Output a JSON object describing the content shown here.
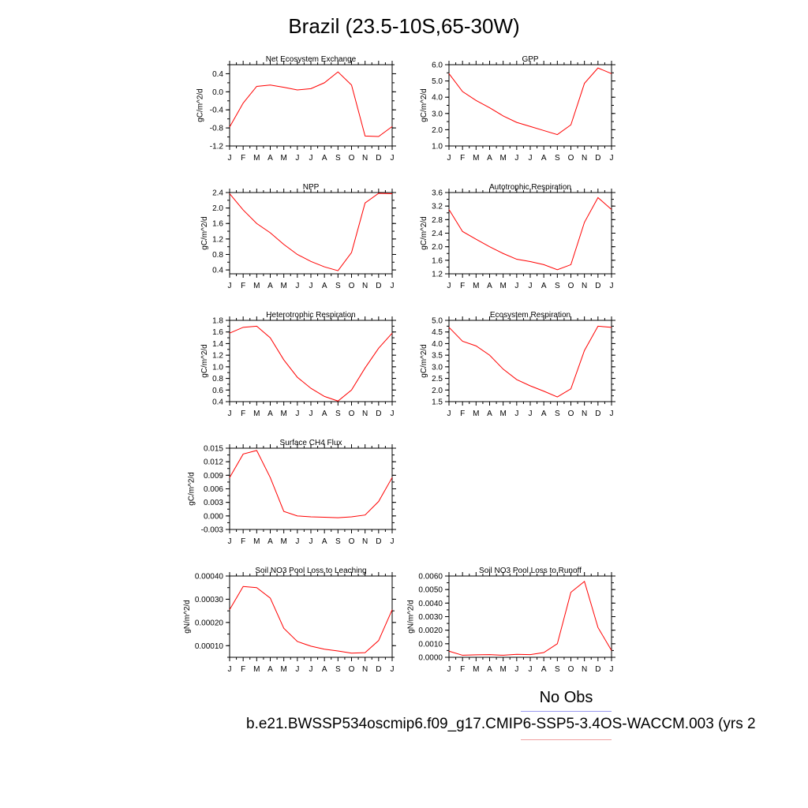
{
  "title": "Brazil (23.5-10S,65-30W)",
  "legend": {
    "label": "No Obs",
    "obs_color": "#9a9af0",
    "model_color": "#f0a0a0"
  },
  "case_label": "b.e21.BWSSP534oscmip6.f09_g17.CMIP6-SSP5-3.4OS-WACCM.003 (yrs 2",
  "line_color": "#ff0000",
  "month_labels": [
    "J",
    "F",
    "M",
    "A",
    "M",
    "J",
    "J",
    "A",
    "S",
    "O",
    "N",
    "D",
    "J"
  ],
  "chart_data": [
    {
      "type": "line",
      "title": "Net Ecosystem Exchange",
      "ylabel": "gC/m^2/d",
      "ylim": [
        -1.2,
        0.6
      ],
      "yticks": [
        -1.2,
        -0.8,
        -0.4,
        0.0,
        0.4
      ],
      "ytick_labels": [
        "-1.2",
        "-0.8",
        "-0.4",
        "0.0",
        "0.4"
      ],
      "values": [
        -0.78,
        -0.25,
        0.12,
        0.15,
        0.1,
        0.04,
        0.07,
        0.2,
        0.44,
        0.15,
        -0.98,
        -0.99,
        -0.77
      ]
    },
    {
      "type": "line",
      "title": "GPP",
      "ylabel": "gC/m^2/d",
      "ylim": [
        1.0,
        6.0
      ],
      "yticks": [
        1.0,
        2.0,
        3.0,
        4.0,
        5.0,
        6.0
      ],
      "ytick_labels": [
        "1.0",
        "2.0",
        "3.0",
        "4.0",
        "5.0",
        "6.0"
      ],
      "values": [
        5.45,
        4.35,
        3.8,
        3.35,
        2.85,
        2.45,
        2.2,
        1.95,
        1.7,
        2.3,
        4.85,
        5.8,
        5.45
      ]
    },
    {
      "type": "line",
      "title": "NPP",
      "ylabel": "gC/m^2/d",
      "ylim": [
        0.3,
        2.4
      ],
      "yticks": [
        0.4,
        0.8,
        1.2,
        1.6,
        2.0,
        2.4
      ],
      "ytick_labels": [
        "0.4",
        "0.8",
        "1.2",
        "1.6",
        "2.0",
        "2.4"
      ],
      "values": [
        2.37,
        1.95,
        1.6,
        1.36,
        1.06,
        0.8,
        0.62,
        0.48,
        0.38,
        0.85,
        2.13,
        2.38,
        2.37
      ]
    },
    {
      "type": "line",
      "title": "Autotrophic Respiration",
      "ylabel": "gC/m^2/d",
      "ylim": [
        1.2,
        3.6
      ],
      "yticks": [
        1.2,
        1.6,
        2.0,
        2.4,
        2.8,
        3.2,
        3.6
      ],
      "ytick_labels": [
        "1.2",
        "1.6",
        "2.0",
        "2.4",
        "2.8",
        "3.2",
        "3.6"
      ],
      "values": [
        3.1,
        2.45,
        2.22,
        2.0,
        1.8,
        1.63,
        1.56,
        1.47,
        1.32,
        1.47,
        2.72,
        3.45,
        3.1
      ]
    },
    {
      "type": "line",
      "title": "Heterotrophic Respiration",
      "ylabel": "gC/m^2/d",
      "ylim": [
        0.4,
        1.8
      ],
      "yticks": [
        0.4,
        0.6,
        0.8,
        1.0,
        1.2,
        1.4,
        1.6,
        1.8
      ],
      "ytick_labels": [
        "0.4",
        "0.6",
        "0.8",
        "1.0",
        "1.2",
        "1.4",
        "1.6",
        "1.8"
      ],
      "values": [
        1.58,
        1.68,
        1.7,
        1.5,
        1.12,
        0.82,
        0.63,
        0.49,
        0.41,
        0.6,
        0.98,
        1.32,
        1.58
      ]
    },
    {
      "type": "line",
      "title": "Ecosystem Respiration",
      "ylabel": "gC/m^2/d",
      "ylim": [
        1.5,
        5.0
      ],
      "yticks": [
        1.5,
        2.0,
        2.5,
        3.0,
        3.5,
        4.0,
        4.5,
        5.0
      ],
      "ytick_labels": [
        "1.5",
        "2.0",
        "2.5",
        "3.0",
        "3.5",
        "4.0",
        "4.5",
        "5.0"
      ],
      "values": [
        4.7,
        4.1,
        3.9,
        3.5,
        2.9,
        2.45,
        2.18,
        1.95,
        1.7,
        2.05,
        3.7,
        4.75,
        4.7
      ]
    },
    {
      "type": "line",
      "title": "Surface CH4 Flux",
      "ylabel": "gC/m^2/d",
      "ylim": [
        -0.003,
        0.015
      ],
      "yticks": [
        -0.003,
        0.0,
        0.003,
        0.006,
        0.009,
        0.012,
        0.015
      ],
      "ytick_labels": [
        "-0.003",
        "0.000",
        "0.003",
        "0.006",
        "0.009",
        "0.012",
        "0.015"
      ],
      "values": [
        0.0085,
        0.0137,
        0.0145,
        0.0085,
        0.001,
        0.0,
        -0.0002,
        -0.0003,
        -0.0004,
        -0.0002,
        0.0002,
        0.0032,
        0.0085
      ]
    },
    null,
    {
      "type": "line",
      "title": "Soil NO3 Pool Loss to Leaching",
      "ylabel": "gN/m^2/d",
      "ylim": [
        5e-05,
        0.0004
      ],
      "yticks": [
        0.0001,
        0.0002,
        0.0003,
        0.0004
      ],
      "ytick_labels": [
        "0.00010",
        "0.00020",
        "0.00030",
        "0.00040"
      ],
      "values": [
        0.000255,
        0.000355,
        0.00035,
        0.000305,
        0.000175,
        0.000118,
        9.8e-05,
        8.5e-05,
        7.7e-05,
        6.8e-05,
        7e-05,
        0.000122,
        0.000255
      ]
    },
    {
      "type": "line",
      "title": "Soil NO3 Pool Loss to Runoff",
      "ylabel": "gN/m^2/d",
      "ylim": [
        0.0,
        0.006
      ],
      "yticks": [
        0.0,
        0.001,
        0.002,
        0.003,
        0.004,
        0.005,
        0.006
      ],
      "ytick_labels": [
        "0.0000",
        "0.0010",
        "0.0020",
        "0.0030",
        "0.0040",
        "0.0050",
        "0.0060"
      ],
      "values": [
        0.00045,
        0.00015,
        0.00018,
        0.0002,
        0.00015,
        0.00022,
        0.0002,
        0.00035,
        0.001,
        0.0048,
        0.0056,
        0.0022,
        0.0005
      ]
    }
  ]
}
